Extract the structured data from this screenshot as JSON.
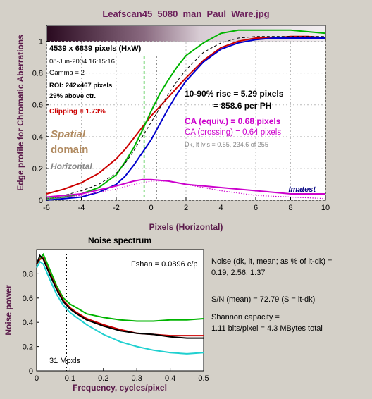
{
  "title": "Leafscan45_5080_man_Paul_Ware.jpg",
  "colors": {
    "background": "#d4d0c8",
    "title": "#6b1f5a",
    "axis_label": "#5a1a4a",
    "red": "#cc0000",
    "green": "#00b400",
    "blue": "#0000cc",
    "black": "#000000",
    "cyan": "#20d0d0",
    "magenta": "#cc00cc",
    "tan": "#b08a60",
    "gray": "#888888",
    "navy": "#000080"
  },
  "edge_panel": {
    "info": {
      "dims": "4539 x 6839 pixels (HxW)",
      "date": "08-Jun-2004 16:15:16",
      "gamma": "Gamma = 2",
      "roi": "ROI: 242x467 pixels",
      "above": "29% above ctr.",
      "clipping": "Clipping = 1.73%"
    },
    "annotations": {
      "spatial": "Spatial",
      "domain": "domain",
      "horizontal": "Horizontal",
      "rise": "10-90% rise = 5.29 pixels",
      "per_ph": "= 858.6 per PH",
      "ca_equiv": "CA (equiv.) = 0.68 pixels",
      "ca_cross": "CA (crossing) = 0.64 pixels",
      "dk_lt": "Dk, lt lvls = 0.55, 234.6 of 255",
      "brand": "Imatest"
    },
    "ylabel": "Edge profile for Chromatic Aberrations",
    "xlabel": "Pixels (Horizontal)"
  },
  "noise_panel": {
    "title": "Noise spectrum",
    "fshan": "Fshan = 0.0896 c/p",
    "mpxls": "31 Mpxls",
    "ylabel": "Noise power",
    "xlabel": "Frequency, cycles/pixel"
  },
  "side_text": {
    "noise_line1": "Noise (dk, lt, mean; as % of lt-dk) =",
    "noise_line2": "0.19,  2.56,  1.37",
    "sn": "S/N (mean) = 72.79   (S = lt-dk)",
    "shannon1": "Shannon capacity =",
    "shannon2": "1.11 bits/pixel = 4.3 MBytes total"
  },
  "chart_data": [
    {
      "type": "line",
      "xlim": [
        -6,
        10
      ],
      "ylim": [
        0,
        1.1
      ],
      "xticks": [
        -6,
        -4,
        -2,
        0,
        2,
        4,
        6,
        8,
        10
      ],
      "yticks": [
        0,
        0.2,
        0.4,
        0.6,
        0.8,
        1
      ],
      "xlabel": "Pixels (Horizontal)",
      "ylabel": "Edge profile for Chromatic Aberrations",
      "vertical_markers": [
        -0.4,
        0,
        0.3
      ],
      "series": [
        {
          "color": "red",
          "x": [
            -6,
            -5,
            -4,
            -3,
            -2,
            -1.5,
            -1,
            -0.5,
            0,
            0.5,
            1,
            1.5,
            2,
            3,
            4,
            5,
            6,
            7,
            8,
            9,
            10
          ],
          "y": [
            0.04,
            0.07,
            0.11,
            0.17,
            0.26,
            0.32,
            0.39,
            0.46,
            0.53,
            0.59,
            0.65,
            0.71,
            0.77,
            0.88,
            0.96,
            1.0,
            1.02,
            1.02,
            1.03,
            1.03,
            1.02
          ]
        },
        {
          "color": "green",
          "x": [
            -6,
            -5,
            -4,
            -3,
            -2,
            -1.5,
            -1,
            -0.5,
            0,
            0.5,
            1,
            1.5,
            2,
            3,
            4,
            5,
            6,
            7,
            8,
            9,
            10
          ],
          "y": [
            0.01,
            0.02,
            0.04,
            0.08,
            0.16,
            0.24,
            0.33,
            0.44,
            0.56,
            0.67,
            0.76,
            0.84,
            0.91,
            0.99,
            1.05,
            1.07,
            1.07,
            1.07,
            1.07,
            1.06,
            1.05
          ]
        },
        {
          "color": "blue",
          "x": [
            -6,
            -5,
            -4,
            -3,
            -2,
            -1.5,
            -1,
            -0.5,
            0,
            0.5,
            1,
            1.5,
            2,
            3,
            4,
            5,
            6,
            7,
            8,
            9,
            10
          ],
          "y": [
            0.0,
            0.01,
            0.02,
            0.05,
            0.1,
            0.15,
            0.22,
            0.3,
            0.38,
            0.48,
            0.58,
            0.67,
            0.75,
            0.87,
            0.95,
            0.99,
            1.01,
            1.02,
            1.02,
            1.02,
            1.02
          ]
        },
        {
          "color": "black",
          "dashed": true,
          "x": [
            -6,
            -5,
            -4,
            -3,
            -2,
            -1.5,
            -1,
            -0.5,
            0,
            0.5,
            1,
            1.5,
            2,
            3,
            4,
            5,
            6,
            7,
            8,
            9,
            10
          ],
          "y": [
            0.02,
            0.03,
            0.06,
            0.1,
            0.17,
            0.23,
            0.31,
            0.4,
            0.49,
            0.58,
            0.67,
            0.75,
            0.82,
            0.93,
            0.99,
            1.02,
            1.03,
            1.03,
            1.03,
            1.03,
            1.03
          ]
        },
        {
          "color": "magenta",
          "dotted": true,
          "x": [
            -6,
            -4,
            -2,
            -1,
            0,
            1,
            2,
            4,
            6,
            8,
            10
          ],
          "y": [
            0.01,
            0.03,
            0.07,
            0.1,
            0.12,
            0.12,
            0.1,
            0.06,
            0.03,
            0.02,
            0.01
          ]
        },
        {
          "color": "magenta",
          "x": [
            -6,
            -4,
            -2,
            -1,
            -0.5,
            0,
            1,
            2,
            3,
            4,
            5,
            6,
            7,
            8,
            9,
            10
          ],
          "y": [
            0.02,
            0.04,
            0.09,
            0.12,
            0.13,
            0.13,
            0.12,
            0.1,
            0.09,
            0.08,
            0.07,
            0.06,
            0.05,
            0.04,
            0.04,
            0.04
          ]
        }
      ]
    },
    {
      "type": "line",
      "title": "Noise spectrum",
      "xlim": [
        0,
        0.5
      ],
      "ylim": [
        0,
        1.0
      ],
      "xticks": [
        0,
        0.1,
        0.2,
        0.3,
        0.4,
        0.5
      ],
      "yticks": [
        0,
        0.2,
        0.4,
        0.6,
        0.8
      ],
      "xlabel": "Frequency, cycles/pixel",
      "ylabel": "Noise power",
      "vertical_markers": [
        0.0896
      ],
      "series": [
        {
          "color": "green",
          "x": [
            0,
            0.01,
            0.02,
            0.04,
            0.06,
            0.08,
            0.1,
            0.12,
            0.15,
            0.2,
            0.25,
            0.3,
            0.35,
            0.4,
            0.45,
            0.5
          ],
          "y": [
            0.88,
            0.92,
            0.96,
            0.83,
            0.7,
            0.6,
            0.55,
            0.52,
            0.47,
            0.44,
            0.42,
            0.41,
            0.41,
            0.42,
            0.42,
            0.43
          ]
        },
        {
          "color": "cyan",
          "x": [
            0,
            0.01,
            0.02,
            0.04,
            0.06,
            0.08,
            0.1,
            0.12,
            0.15,
            0.2,
            0.25,
            0.3,
            0.35,
            0.4,
            0.45,
            0.5
          ],
          "y": [
            0.85,
            0.9,
            0.88,
            0.75,
            0.63,
            0.54,
            0.48,
            0.44,
            0.38,
            0.3,
            0.24,
            0.2,
            0.17,
            0.15,
            0.14,
            0.15
          ]
        },
        {
          "color": "red",
          "x": [
            0,
            0.01,
            0.02,
            0.04,
            0.06,
            0.08,
            0.1,
            0.12,
            0.15,
            0.2,
            0.25,
            0.3,
            0.35,
            0.4,
            0.45,
            0.5
          ],
          "y": [
            0.88,
            0.92,
            0.93,
            0.8,
            0.68,
            0.58,
            0.52,
            0.48,
            0.43,
            0.38,
            0.34,
            0.31,
            0.3,
            0.29,
            0.29,
            0.29
          ]
        },
        {
          "color": "black",
          "x": [
            0,
            0.01,
            0.02,
            0.04,
            0.06,
            0.08,
            0.1,
            0.12,
            0.15,
            0.2,
            0.25,
            0.3,
            0.35,
            0.4,
            0.45,
            0.5
          ],
          "y": [
            0.88,
            0.95,
            0.92,
            0.79,
            0.67,
            0.57,
            0.51,
            0.47,
            0.42,
            0.37,
            0.33,
            0.31,
            0.3,
            0.28,
            0.27,
            0.27
          ]
        }
      ]
    }
  ]
}
